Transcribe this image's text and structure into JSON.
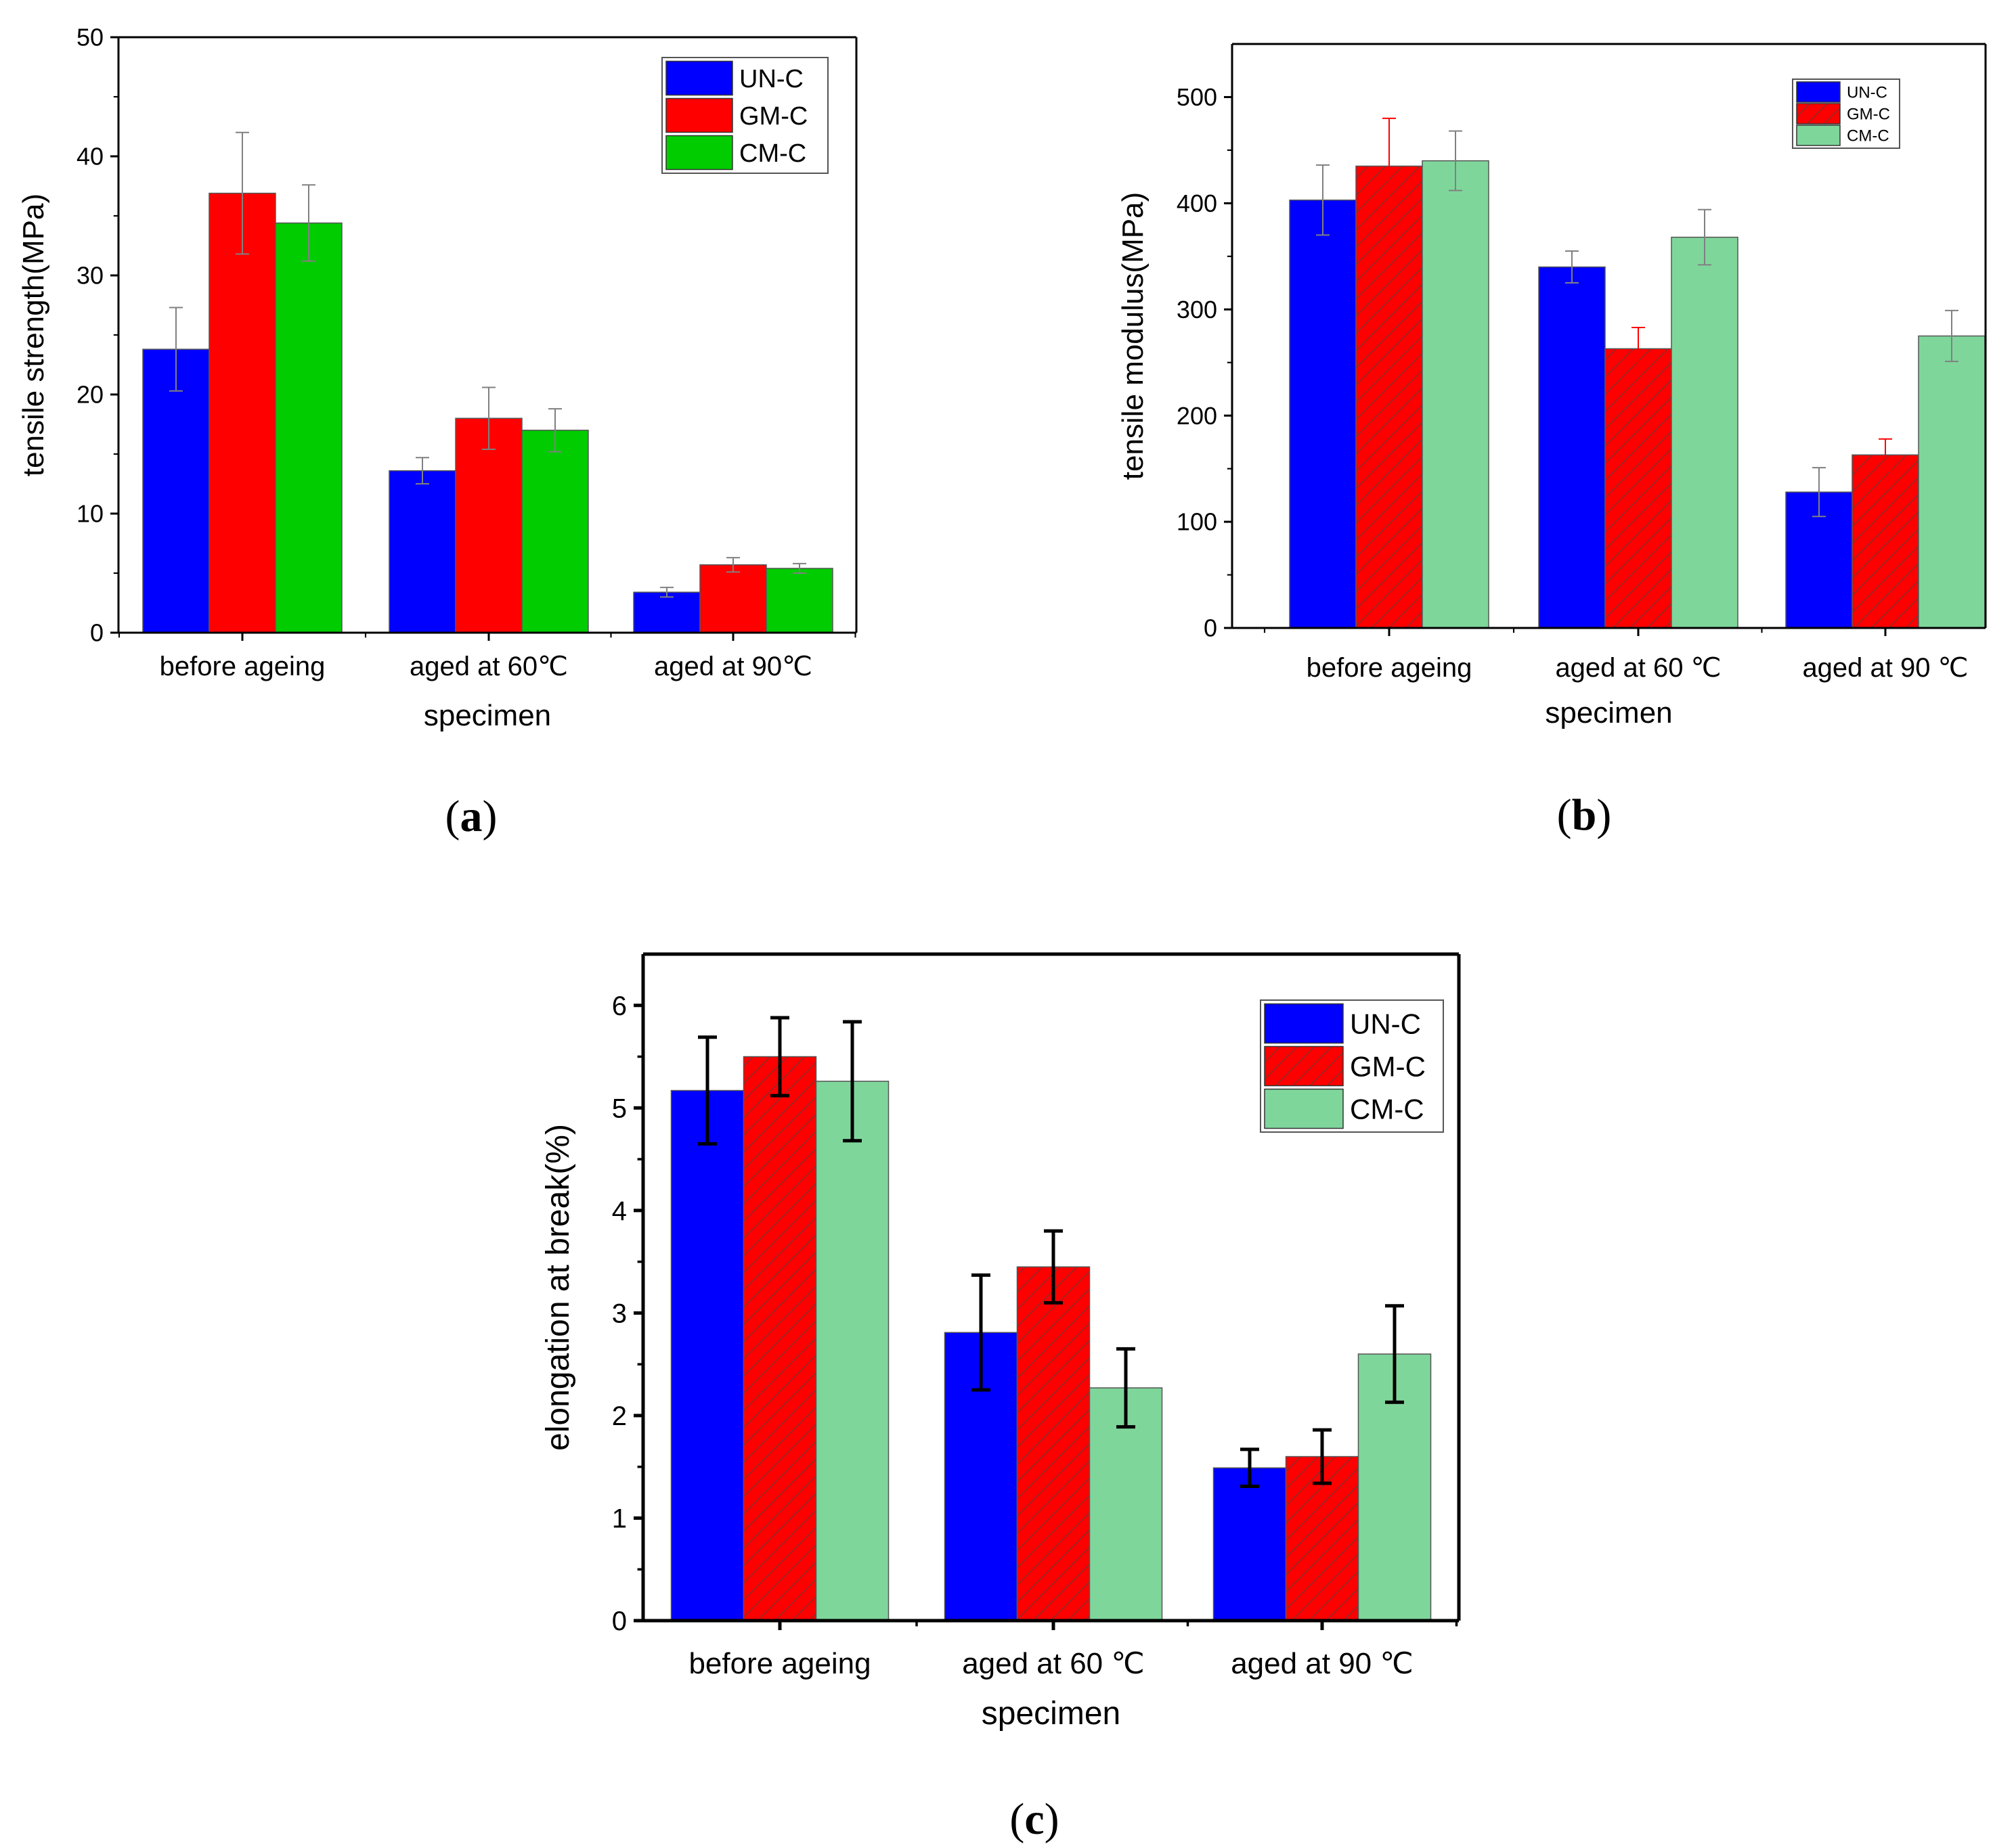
{
  "figure": {
    "panels": [
      "(a)",
      "(b)",
      "(c)"
    ]
  },
  "chart_data": [
    {
      "panel": "(a)",
      "type": "bar",
      "caption": "(a)",
      "xlabel": "specimen",
      "ylabel": "tensile strength(MPa)",
      "ylim": [
        0,
        50
      ],
      "yticks": [
        0,
        10,
        20,
        30,
        40,
        50
      ],
      "categories": [
        "before ageing",
        "aged at 60℃",
        "aged at 90℃"
      ],
      "legend_position": "top-right",
      "series": [
        {
          "name": "UN-C",
          "color": "#0000ff",
          "hatch": false,
          "values": [
            23.8,
            13.6,
            3.4
          ],
          "errors": [
            3.5,
            1.1,
            0.4
          ]
        },
        {
          "name": "GM-C",
          "color": "#ff0000",
          "hatch": false,
          "values": [
            36.9,
            18.0,
            5.7
          ],
          "errors": [
            5.1,
            2.6,
            0.6
          ]
        },
        {
          "name": "CM-C",
          "color": "#00cc00",
          "hatch": false,
          "values": [
            34.4,
            17.0,
            5.4
          ],
          "errors": [
            3.2,
            1.8,
            0.4
          ]
        }
      ],
      "error_color": "#808080"
    },
    {
      "panel": "(b)",
      "type": "bar",
      "caption": "(b)",
      "xlabel": "specimen",
      "ylabel": "tensile modulus(MPa)",
      "ylim": [
        0,
        550
      ],
      "yticks": [
        0,
        100,
        200,
        300,
        400,
        500
      ],
      "categories": [
        "before ageing",
        "aged at 60 ℃",
        "aged at 90 ℃"
      ],
      "legend_position": "top-right",
      "series": [
        {
          "name": "UN-C",
          "color": "#0000ff",
          "hatch": false,
          "values": [
            403,
            340,
            128
          ],
          "errors": [
            33,
            15,
            23
          ]
        },
        {
          "name": "GM-C",
          "color": "#ff0000",
          "hatch": true,
          "values": [
            435,
            263,
            163
          ],
          "errors": [
            45,
            20,
            15
          ]
        },
        {
          "name": "CM-C",
          "color": "#7fd69b",
          "hatch": false,
          "values": [
            440,
            368,
            275
          ],
          "errors": [
            28,
            26,
            24
          ]
        }
      ],
      "error_color": "#808080",
      "error_color_overrides": {
        "GM-C": "#ff0000"
      }
    },
    {
      "panel": "(c)",
      "type": "bar",
      "caption": "(c)",
      "xlabel": "specimen",
      "ylabel": "elongation at break(%)",
      "ylim": [
        0,
        6.5
      ],
      "yticks": [
        0,
        1,
        2,
        3,
        4,
        5,
        6
      ],
      "categories": [
        "before ageing",
        "aged at 60 ℃",
        "aged at 90 ℃"
      ],
      "legend_position": "top-right",
      "series": [
        {
          "name": "UN-C",
          "color": "#0000ff",
          "hatch": false,
          "values": [
            5.17,
            2.81,
            1.49
          ],
          "errors": [
            0.52,
            0.56,
            0.18
          ]
        },
        {
          "name": "GM-C",
          "color": "#ff0000",
          "hatch": true,
          "values": [
            5.5,
            3.45,
            1.6
          ],
          "errors": [
            0.38,
            0.35,
            0.26
          ]
        },
        {
          "name": "CM-C",
          "color": "#7fd69b",
          "hatch": false,
          "values": [
            5.26,
            2.27,
            2.6
          ],
          "errors": [
            0.58,
            0.38,
            0.47
          ]
        }
      ],
      "error_color": "#000000"
    }
  ]
}
